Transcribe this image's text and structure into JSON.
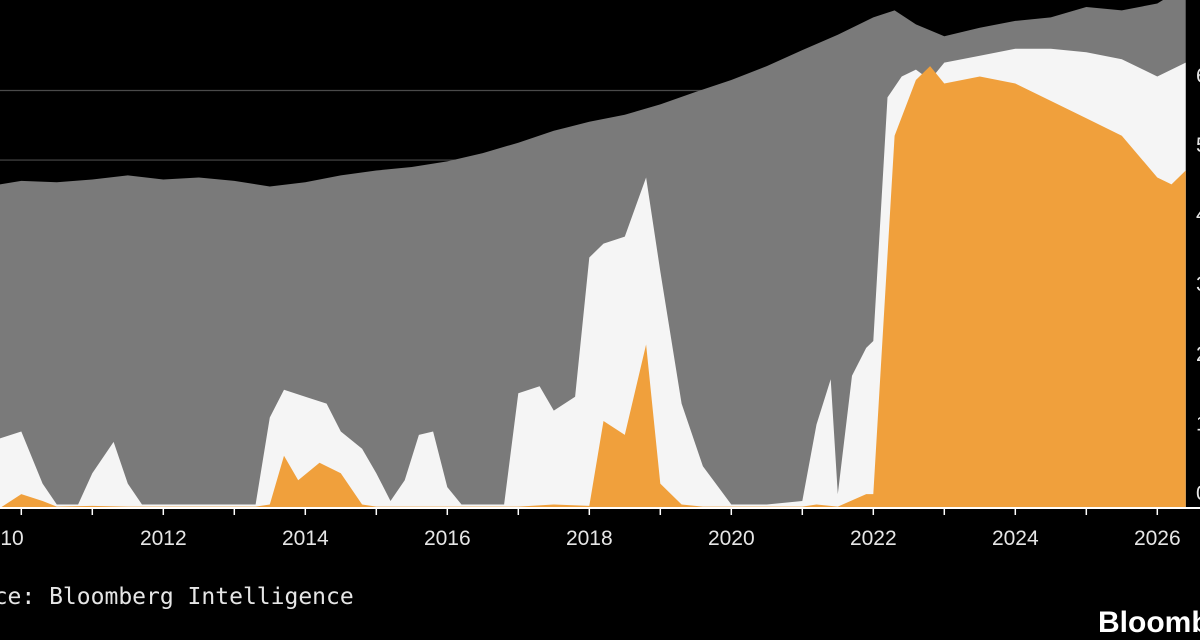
{
  "chart_data": {
    "type": "area",
    "x_ticks": [
      "2012",
      "2014",
      "2016",
      "2018",
      "2020",
      "2022",
      "2024",
      "2026"
    ],
    "x_tick_years": [
      2012,
      2014,
      2016,
      2018,
      2020,
      2022,
      2024,
      2026
    ],
    "x_tick_partial": {
      "label": "10",
      "year": 2010
    },
    "y_ticks": [
      "0",
      "1",
      "2",
      "3",
      "4",
      "5",
      "6"
    ],
    "y_tick_values": [
      0,
      1,
      2,
      3,
      4,
      5,
      6
    ],
    "ylim": [
      0,
      7.3
    ],
    "xlim": [
      2009.7,
      2026.5
    ],
    "grid": "horizontal",
    "colors": {
      "total": "#7a7a7a",
      "middle": "#f5f5f5",
      "orange": "#f0a03c",
      "grid": "#4a4a4a",
      "axis": "#ffffff",
      "text": "#e6e6e6"
    },
    "series": [
      {
        "key": "total",
        "x": [
          2009.7,
          2010.0,
          2010.5,
          2011.0,
          2011.5,
          2012.0,
          2012.5,
          2013.0,
          2013.5,
          2014.0,
          2014.5,
          2015.0,
          2015.5,
          2016.0,
          2016.5,
          2017.0,
          2017.5,
          2018.0,
          2018.5,
          2019.0,
          2019.5,
          2020.0,
          2020.5,
          2021.0,
          2021.5,
          2022.0,
          2022.3,
          2022.6,
          2023.0,
          2023.5,
          2024.0,
          2024.5,
          2025.0,
          2025.5,
          2026.0,
          2026.4
        ],
        "y": [
          4.65,
          4.7,
          4.68,
          4.72,
          4.78,
          4.72,
          4.75,
          4.7,
          4.62,
          4.68,
          4.78,
          4.85,
          4.9,
          4.98,
          5.1,
          5.25,
          5.42,
          5.55,
          5.65,
          5.8,
          5.98,
          6.15,
          6.35,
          6.58,
          6.8,
          7.05,
          7.15,
          6.95,
          6.78,
          6.9,
          7.0,
          7.05,
          7.2,
          7.15,
          7.25,
          7.5
        ]
      },
      {
        "key": "middle",
        "x": [
          2009.7,
          2010.0,
          2010.3,
          2010.5,
          2010.8,
          2011.0,
          2011.3,
          2011.5,
          2011.7,
          2012.0,
          2013.0,
          2013.3,
          2013.5,
          2013.7,
          2014.0,
          2014.3,
          2014.5,
          2014.8,
          2015.0,
          2015.2,
          2015.4,
          2015.6,
          2015.8,
          2016.0,
          2016.2,
          2016.5,
          2016.8,
          2017.0,
          2017.3,
          2017.5,
          2017.8,
          2018.0,
          2018.2,
          2018.5,
          2018.8,
          2019.0,
          2019.3,
          2019.6,
          2020.0,
          2020.5,
          2021.0,
          2021.2,
          2021.4,
          2021.5,
          2021.7,
          2021.9,
          2022.0,
          2022.2,
          2022.4,
          2022.6,
          2022.8,
          2023.0,
          2023.5,
          2024.0,
          2024.5,
          2025.0,
          2025.5,
          2026.0,
          2026.4
        ],
        "y": [
          1.0,
          1.1,
          0.35,
          0.05,
          0.05,
          0.5,
          0.95,
          0.35,
          0.05,
          0.05,
          0.05,
          0.05,
          1.3,
          1.7,
          1.6,
          1.5,
          1.1,
          0.85,
          0.5,
          0.1,
          0.4,
          1.05,
          1.1,
          0.3,
          0.05,
          0.05,
          0.05,
          1.65,
          1.75,
          1.4,
          1.6,
          3.6,
          3.8,
          3.9,
          4.75,
          3.4,
          1.5,
          0.6,
          0.05,
          0.05,
          0.1,
          1.2,
          1.85,
          0.2,
          1.9,
          2.3,
          2.4,
          5.9,
          6.2,
          6.3,
          6.15,
          6.4,
          6.5,
          6.6,
          6.6,
          6.55,
          6.45,
          6.2,
          6.4
        ]
      },
      {
        "key": "orange",
        "x": [
          2009.7,
          2010.0,
          2010.3,
          2010.5,
          2011.0,
          2011.5,
          2012.0,
          2013.3,
          2013.5,
          2013.7,
          2013.9,
          2014.2,
          2014.5,
          2014.8,
          2015.0,
          2017.0,
          2017.5,
          2018.0,
          2018.2,
          2018.5,
          2018.8,
          2019.0,
          2019.3,
          2019.6,
          2021.0,
          2021.2,
          2021.5,
          2021.9,
          2022.0,
          2022.3,
          2022.6,
          2022.8,
          2023.0,
          2023.5,
          2024.0,
          2024.5,
          2025.0,
          2025.5,
          2026.0,
          2026.2,
          2026.4
        ],
        "y": [
          0.0,
          0.2,
          0.1,
          0.02,
          0.03,
          0.02,
          0.02,
          0.02,
          0.05,
          0.75,
          0.4,
          0.65,
          0.5,
          0.05,
          0.02,
          0.02,
          0.05,
          0.03,
          1.25,
          1.05,
          2.35,
          0.35,
          0.05,
          0.02,
          0.02,
          0.05,
          0.02,
          0.2,
          0.2,
          5.35,
          6.15,
          6.35,
          6.1,
          6.2,
          6.1,
          5.85,
          5.6,
          5.35,
          4.75,
          4.65,
          4.85
        ]
      }
    ]
  },
  "source_text": "urce: Bloomberg Intelligence",
  "brand_text": "Bloomb"
}
